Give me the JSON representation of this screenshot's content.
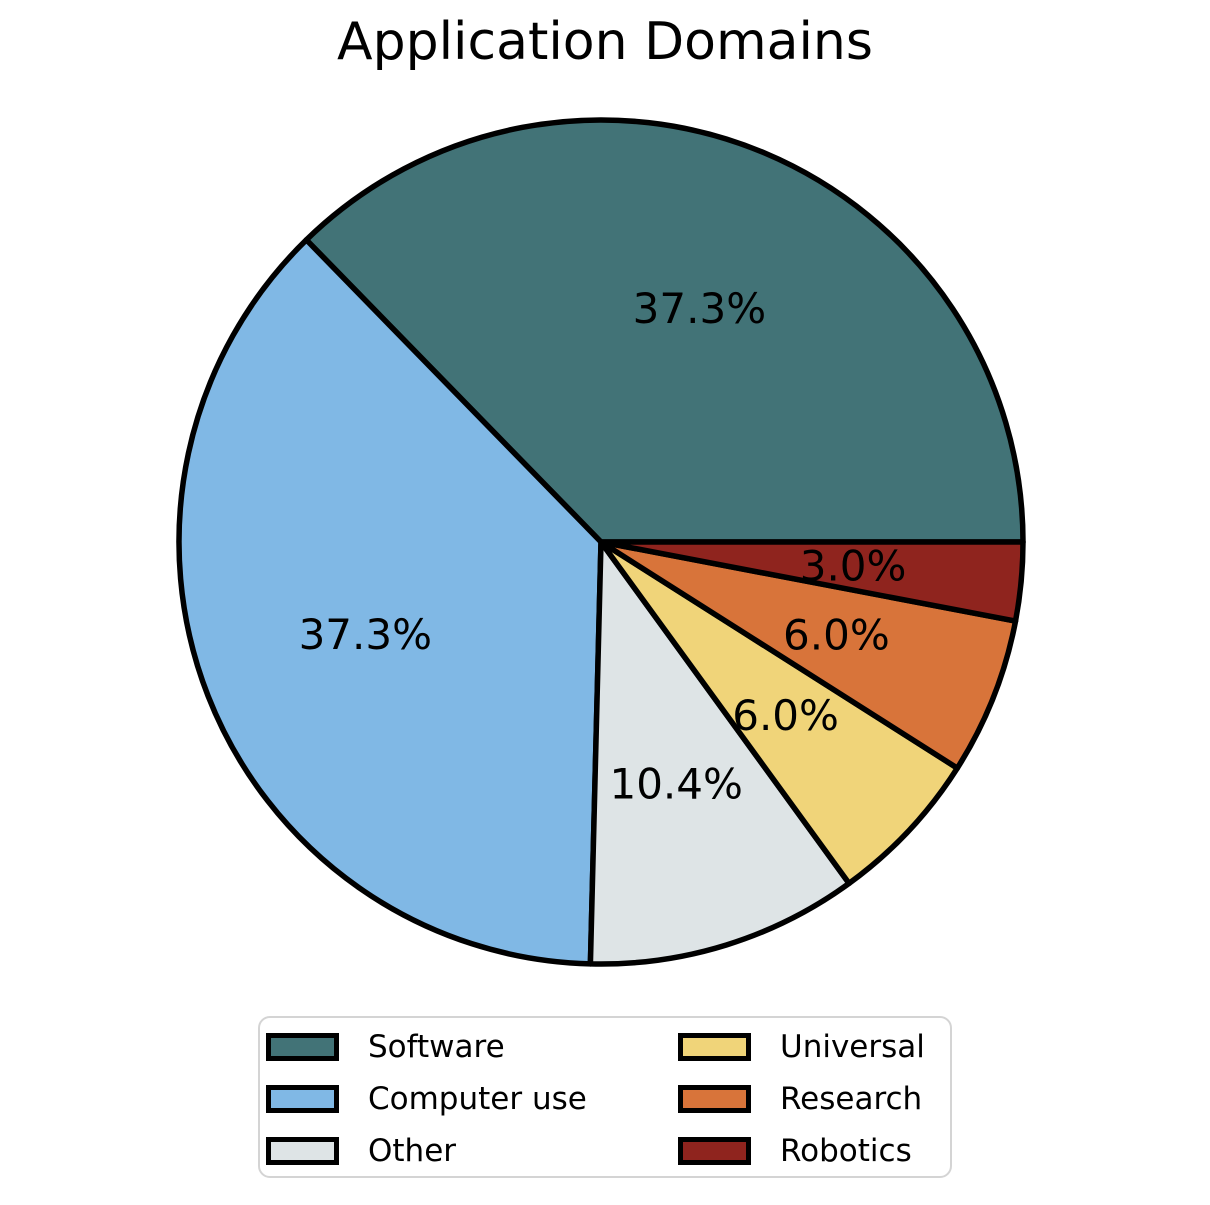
{
  "chart_data": {
    "type": "pie",
    "title": "Application Domains",
    "labels": [
      "Software",
      "Computer use",
      "Other",
      "Universal",
      "Research",
      "Robotics"
    ],
    "values": [
      37.3,
      37.3,
      10.4,
      6.0,
      6.0,
      3.0
    ],
    "percent_labels": [
      "37.3%",
      "37.3%",
      "10.4%",
      "6.0%",
      "6.0%",
      "3.0%"
    ],
    "colors": [
      "#427377",
      "#80B8E5",
      "#DEE4E6",
      "#F0D479",
      "#D8743A",
      "#8F241E"
    ],
    "edge_color": "#000000",
    "edge_width": 5.5,
    "background_color": "#ffffff",
    "legend_frame_color": "#d4d4d4",
    "start_angle_deg": 0,
    "direction": "counterclockwise",
    "pct_distance": 0.6,
    "legend": {
      "position": "bottom",
      "columns": 2,
      "column_major": true,
      "entries": [
        "Software",
        "Computer use",
        "Other",
        "Universal",
        "Research",
        "Robotics"
      ]
    }
  }
}
